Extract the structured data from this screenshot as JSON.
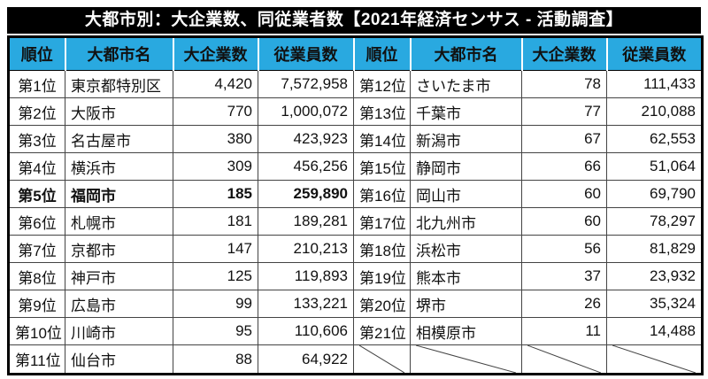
{
  "title": "大都市別：大企業数、同従業者数【2021年経済センサス - 活動調査】",
  "columns": [
    "順位",
    "大都市名",
    "大企業数",
    "従業員数"
  ],
  "highlight_rank": "第5位",
  "colors": {
    "header_bg": "#29A9E0",
    "highlight_bg": "#FFFF00",
    "title_bg": "#000000",
    "title_fg": "#FFFFFF"
  },
  "left_rows": [
    {
      "rank": "第1位",
      "city": "東京都特別区",
      "companies": "4,420",
      "employees": "7,572,958"
    },
    {
      "rank": "第2位",
      "city": "大阪市",
      "companies": "770",
      "employees": "1,000,072"
    },
    {
      "rank": "第3位",
      "city": "名古屋市",
      "companies": "380",
      "employees": "423,923"
    },
    {
      "rank": "第4位",
      "city": "横浜市",
      "companies": "309",
      "employees": "456,256"
    },
    {
      "rank": "第5位",
      "city": "福岡市",
      "companies": "185",
      "employees": "259,890"
    },
    {
      "rank": "第6位",
      "city": "札幌市",
      "companies": "181",
      "employees": "189,281"
    },
    {
      "rank": "第7位",
      "city": "京都市",
      "companies": "147",
      "employees": "210,213"
    },
    {
      "rank": "第8位",
      "city": "神戸市",
      "companies": "125",
      "employees": "119,893"
    },
    {
      "rank": "第9位",
      "city": "広島市",
      "companies": "99",
      "employees": "133,221"
    },
    {
      "rank": "第10位",
      "city": "川崎市",
      "companies": "95",
      "employees": "110,606"
    },
    {
      "rank": "第11位",
      "city": "仙台市",
      "companies": "88",
      "employees": "64,922"
    }
  ],
  "right_rows": [
    {
      "rank": "第12位",
      "city": "さいたま市",
      "companies": "78",
      "employees": "111,433"
    },
    {
      "rank": "第13位",
      "city": "千葉市",
      "companies": "77",
      "employees": "210,088"
    },
    {
      "rank": "第14位",
      "city": "新潟市",
      "companies": "67",
      "employees": "62,553"
    },
    {
      "rank": "第15位",
      "city": "静岡市",
      "companies": "66",
      "employees": "51,064"
    },
    {
      "rank": "第16位",
      "city": "岡山市",
      "companies": "60",
      "employees": "69,790"
    },
    {
      "rank": "第17位",
      "city": "北九州市",
      "companies": "60",
      "employees": "78,297"
    },
    {
      "rank": "第18位",
      "city": "浜松市",
      "companies": "56",
      "employees": "81,829"
    },
    {
      "rank": "第19位",
      "city": "熊本市",
      "companies": "37",
      "employees": "23,932"
    },
    {
      "rank": "第20位",
      "city": "堺市",
      "companies": "26",
      "employees": "35,324"
    },
    {
      "rank": "第21位",
      "city": "相模原市",
      "companies": "11",
      "employees": "14,488"
    },
    {
      "rank": "",
      "city": "",
      "companies": "",
      "employees": "",
      "empty": true
    }
  ]
}
